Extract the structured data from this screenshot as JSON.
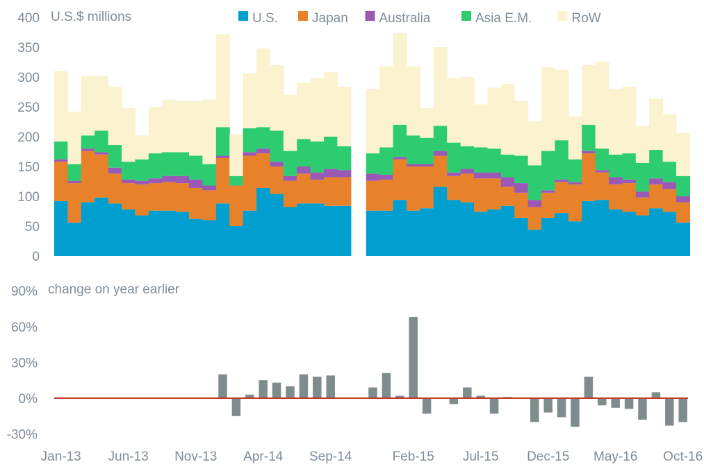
{
  "chart_data": [
    {
      "type": "bar",
      "stacked": true,
      "unit_label": "U.S.$ millions",
      "ylim": [
        0,
        400
      ],
      "yticks": [
        "0",
        "50",
        "100",
        "150",
        "200",
        "250",
        "300",
        "350",
        "400"
      ],
      "gap_after_index": 21,
      "legend_position": "top",
      "series": [
        {
          "name": "U.S.",
          "color": "#009fd0",
          "values": [
            92,
            56,
            90,
            98,
            88,
            78,
            68,
            76,
            76,
            74,
            62,
            60,
            88,
            50,
            76,
            114,
            104,
            82,
            88,
            88,
            84,
            84,
            76,
            76,
            94,
            76,
            80,
            116,
            94,
            90,
            74,
            78,
            84,
            64,
            44,
            64,
            72,
            58,
            92,
            94,
            78,
            74,
            68,
            80,
            74,
            56
          ]
        },
        {
          "name": "Japan",
          "color": "#e8822a",
          "values": [
            66,
            66,
            86,
            72,
            50,
            44,
            52,
            46,
            48,
            48,
            52,
            50,
            76,
            68,
            92,
            58,
            46,
            44,
            50,
            40,
            48,
            48,
            50,
            52,
            68,
            74,
            70,
            52,
            40,
            48,
            56,
            52,
            32,
            42,
            38,
            42,
            52,
            62,
            80,
            46,
            42,
            48,
            30,
            40,
            38,
            34
          ]
        },
        {
          "name": "Australia",
          "color": "#9b59b6",
          "values": [
            4,
            4,
            4,
            4,
            10,
            6,
            6,
            8,
            10,
            12,
            14,
            8,
            4,
            0,
            6,
            8,
            8,
            8,
            12,
            12,
            14,
            12,
            12,
            8,
            4,
            4,
            4,
            8,
            6,
            8,
            10,
            10,
            16,
            16,
            12,
            4,
            4,
            4,
            4,
            4,
            12,
            6,
            10,
            10,
            12,
            10
          ]
        },
        {
          "name": "Asia E.M.",
          "color": "#2ecc71",
          "values": [
            30,
            28,
            22,
            36,
            38,
            30,
            36,
            42,
            40,
            40,
            40,
            36,
            48,
            16,
            40,
            36,
            52,
            42,
            46,
            52,
            54,
            40,
            34,
            46,
            54,
            48,
            44,
            42,
            50,
            38,
            42,
            40,
            38,
            46,
            58,
            66,
            66,
            38,
            44,
            36,
            38,
            44,
            48,
            48,
            34,
            34
          ]
        },
        {
          "name": "RoW",
          "color": "#fbf2d0",
          "values": [
            118,
            88,
            100,
            92,
            98,
            90,
            40,
            78,
            88,
            86,
            92,
            108,
            156,
            70,
            92,
            132,
            110,
            94,
            94,
            106,
            108,
            100,
            108,
            136,
            154,
            116,
            50,
            132,
            108,
            116,
            72,
            102,
            118,
            92,
            74,
            140,
            118,
            72,
            100,
            146,
            110,
            112,
            62,
            86,
            80,
            72
          ]
        }
      ]
    },
    {
      "type": "bar",
      "unit_label": "change on year earlier",
      "ylim": [
        -30,
        90
      ],
      "yticks": [
        "90%",
        "60%",
        "30%",
        "0%",
        "-30%"
      ],
      "baseline_color": "#c0392b",
      "bar_color": "#7f8c8d",
      "x_labels": [
        "Jan-13",
        "Jun-13",
        "Nov-13",
        "Apr-14",
        "Sep-14",
        "Feb-15",
        "Jul-15",
        "Dec-15",
        "May-16",
        "Oct-16"
      ],
      "values": [
        null,
        null,
        null,
        null,
        null,
        null,
        null,
        null,
        null,
        null,
        null,
        null,
        20,
        -15,
        3,
        15,
        13,
        10,
        20,
        18,
        19,
        null,
        9,
        21,
        2,
        68,
        -13,
        null,
        -5,
        9,
        2,
        -13,
        1,
        null,
        -20,
        -12,
        -16,
        -24,
        18,
        -6,
        -8,
        -9,
        -18,
        5,
        -23,
        -20
      ]
    }
  ]
}
